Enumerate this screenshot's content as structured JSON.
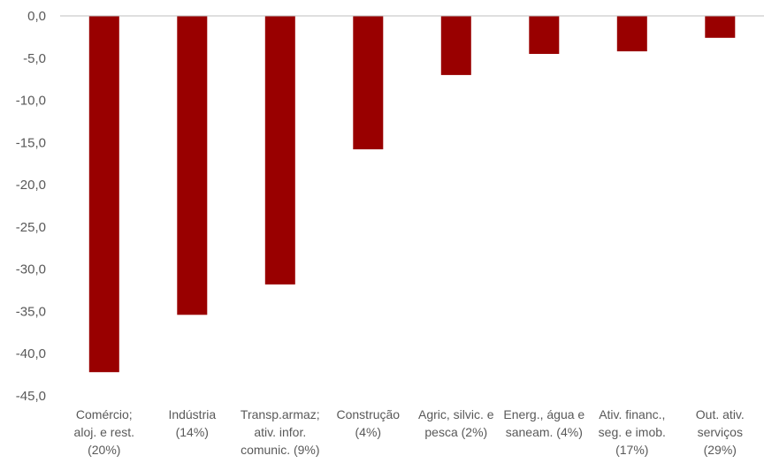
{
  "chart_data": {
    "type": "bar",
    "title": "",
    "xlabel": "",
    "ylabel": "",
    "ylim": [
      -45,
      0
    ],
    "y_ticks": [
      "0,0",
      "-5,0",
      "-10,0",
      "-15,0",
      "-20,0",
      "-25,0",
      "-30,0",
      "-35,0",
      "-40,0",
      "-45,0"
    ],
    "grid": false,
    "legend": "none",
    "bar_color": "#990000",
    "categories": [
      [
        "Comércio;",
        "aloj. e rest.",
        "(20%)"
      ],
      [
        "Indústria",
        "(14%)"
      ],
      [
        "Transp.armaz;",
        "ativ. infor.",
        "comunic. (9%)"
      ],
      [
        "Construção",
        "(4%)"
      ],
      [
        "Agric, silvic. e",
        "pesca (2%)"
      ],
      [
        "Energ., água e",
        "saneam. (4%)"
      ],
      [
        "Ativ. financ.,",
        "seg. e imob.",
        "(17%)"
      ],
      [
        "Out. ativ.",
        "serviços",
        "(29%)"
      ]
    ],
    "values": [
      -42.2,
      -35.4,
      -31.8,
      -15.8,
      -7.0,
      -4.5,
      -4.2,
      -2.6
    ]
  }
}
